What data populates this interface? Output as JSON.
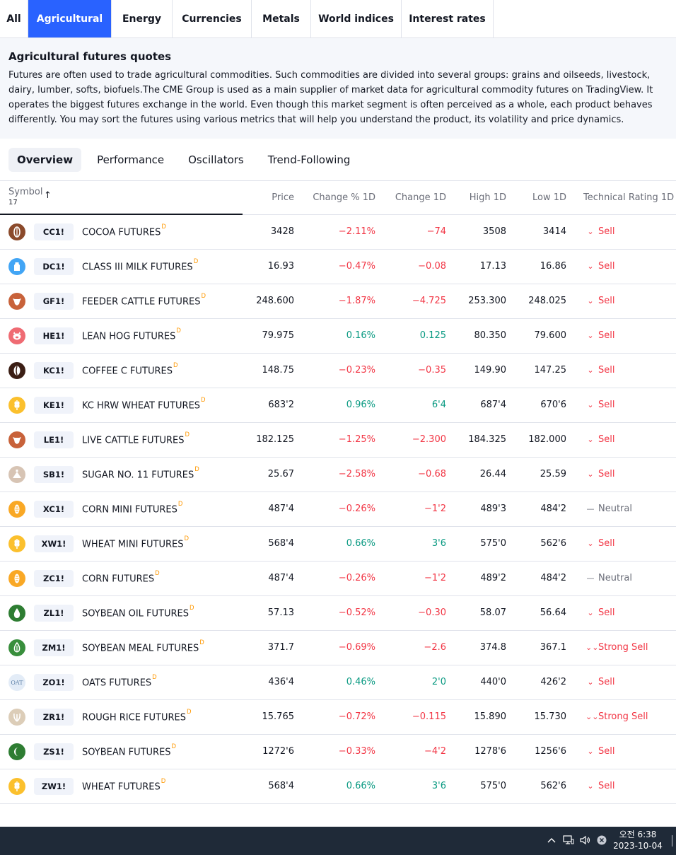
{
  "category_tabs": [
    {
      "label": "All",
      "active": false
    },
    {
      "label": "Agricultural",
      "active": true
    },
    {
      "label": "Energy",
      "active": false
    },
    {
      "label": "Currencies",
      "active": false
    },
    {
      "label": "Metals",
      "active": false
    },
    {
      "label": "World indices",
      "active": false
    },
    {
      "label": "Interest rates",
      "active": false
    }
  ],
  "info": {
    "title": "Agricultural futures quotes",
    "description": "Futures are often used to trade agricultural commodities. Such commodities are divided into several groups: grains and oilseeds, livestock, dairy, lumber, softs, biofuels.The CME Group is used as a main supplier of market data for agricultural commodity futures on TradingView. It operates the biggest futures exchange in the world. Even though this market segment is often perceived as a whole, each product behaves differently. You may sort the futures using various metrics that will help you understand the product, its volatility and price dynamics."
  },
  "view_tabs": [
    {
      "label": "Overview",
      "active": true
    },
    {
      "label": "Performance",
      "active": false
    },
    {
      "label": "Oscillators",
      "active": false
    },
    {
      "label": "Trend-Following",
      "active": false
    }
  ],
  "table": {
    "headers": {
      "symbol": "Symbol",
      "count": "17",
      "price": "Price",
      "change_pct": "Change % 1D",
      "change": "Change 1D",
      "high": "High 1D",
      "low": "Low 1D",
      "rating": "Technical Rating 1D"
    },
    "delayed_mark": "D",
    "rows": [
      {
        "ticker": "CC1!",
        "name": "COCOA FUTURES",
        "price": "3428",
        "change_pct": "−2.11%",
        "change": "−74",
        "high": "3508",
        "low": "3414",
        "rating": "Sell",
        "direction": "neg",
        "icon": "cocoa-icon",
        "icon_color": "#8b4a2b"
      },
      {
        "ticker": "DC1!",
        "name": "CLASS III MILK FUTURES",
        "price": "16.93",
        "change_pct": "−0.47%",
        "change": "−0.08",
        "high": "17.13",
        "low": "16.86",
        "rating": "Sell",
        "direction": "neg",
        "icon": "milk-icon",
        "icon_color": "#42a5f5"
      },
      {
        "ticker": "GF1!",
        "name": "FEEDER CATTLE FUTURES",
        "price": "248.600",
        "change_pct": "−1.87%",
        "change": "−4.725",
        "high": "253.300",
        "low": "248.025",
        "rating": "Sell",
        "direction": "neg",
        "icon": "cattle-icon",
        "icon_color": "#c8623a"
      },
      {
        "ticker": "HE1!",
        "name": "LEAN HOG FUTURES",
        "price": "79.975",
        "change_pct": "0.16%",
        "change": "0.125",
        "high": "80.350",
        "low": "79.600",
        "rating": "Sell",
        "direction": "pos",
        "icon": "hog-icon",
        "icon_color": "#ef6b73"
      },
      {
        "ticker": "KC1!",
        "name": "COFFEE C FUTURES",
        "price": "148.75",
        "change_pct": "−0.23%",
        "change": "−0.35",
        "high": "149.90",
        "low": "147.25",
        "rating": "Sell",
        "direction": "neg",
        "icon": "coffee-icon",
        "icon_color": "#3b1e14"
      },
      {
        "ticker": "KE1!",
        "name": "KC HRW WHEAT FUTURES",
        "price": "683'2",
        "change_pct": "0.96%",
        "change": "6'4",
        "high": "687'4",
        "low": "670'6",
        "rating": "Sell",
        "direction": "pos",
        "icon": "wheat-icon",
        "icon_color": "#fbc02d"
      },
      {
        "ticker": "LE1!",
        "name": "LIVE CATTLE FUTURES",
        "price": "182.125",
        "change_pct": "−1.25%",
        "change": "−2.300",
        "high": "184.325",
        "low": "182.000",
        "rating": "Sell",
        "direction": "neg",
        "icon": "cattle-icon",
        "icon_color": "#c8623a"
      },
      {
        "ticker": "SB1!",
        "name": "SUGAR NO. 11 FUTURES",
        "price": "25.67",
        "change_pct": "−2.58%",
        "change": "−0.68",
        "high": "26.44",
        "low": "25.59",
        "rating": "Sell",
        "direction": "neg",
        "icon": "sugar-icon",
        "icon_color": "#d7c4b4"
      },
      {
        "ticker": "XC1!",
        "name": "CORN MINI FUTURES",
        "price": "487'4",
        "change_pct": "−0.26%",
        "change": "−1'2",
        "high": "489'3",
        "low": "484'2",
        "rating": "Neutral",
        "direction": "neg",
        "icon": "corn-icon",
        "icon_color": "#f9a825"
      },
      {
        "ticker": "XW1!",
        "name": "WHEAT MINI FUTURES",
        "price": "568'4",
        "change_pct": "0.66%",
        "change": "3'6",
        "high": "575'0",
        "low": "562'6",
        "rating": "Sell",
        "direction": "pos",
        "icon": "wheat-icon",
        "icon_color": "#fbc02d"
      },
      {
        "ticker": "ZC1!",
        "name": "CORN FUTURES",
        "price": "487'4",
        "change_pct": "−0.26%",
        "change": "−1'2",
        "high": "489'2",
        "low": "484'2",
        "rating": "Neutral",
        "direction": "neg",
        "icon": "corn-icon",
        "icon_color": "#f9a825"
      },
      {
        "ticker": "ZL1!",
        "name": "SOYBEAN OIL FUTURES",
        "price": "57.13",
        "change_pct": "−0.52%",
        "change": "−0.30",
        "high": "58.07",
        "low": "56.64",
        "rating": "Sell",
        "direction": "neg",
        "icon": "oil-drop-icon",
        "icon_color": "#2e7d32"
      },
      {
        "ticker": "ZM1!",
        "name": "SOYBEAN MEAL FUTURES",
        "price": "371.7",
        "change_pct": "−0.69%",
        "change": "−2.6",
        "high": "374.8",
        "low": "367.1",
        "rating": "Strong Sell",
        "direction": "neg",
        "icon": "soy-meal-icon",
        "icon_color": "#388e3c"
      },
      {
        "ticker": "ZO1!",
        "name": "OATS FUTURES",
        "price": "436'4",
        "change_pct": "0.46%",
        "change": "2'0",
        "high": "440'0",
        "low": "426'2",
        "rating": "Sell",
        "direction": "pos",
        "icon": "oats-icon",
        "icon_color": "#e3ecf7",
        "icon_text": "OAT"
      },
      {
        "ticker": "ZR1!",
        "name": "ROUGH RICE FUTURES",
        "price": "15.765",
        "change_pct": "−0.72%",
        "change": "−0.115",
        "high": "15.890",
        "low": "15.730",
        "rating": "Strong Sell",
        "direction": "neg",
        "icon": "rice-icon",
        "icon_color": "#dccdb8"
      },
      {
        "ticker": "ZS1!",
        "name": "SOYBEAN FUTURES",
        "price": "1272'6",
        "change_pct": "−0.33%",
        "change": "−4'2",
        "high": "1278'6",
        "low": "1256'6",
        "rating": "Sell",
        "direction": "neg",
        "icon": "soybean-icon",
        "icon_color": "#2e7d32"
      },
      {
        "ticker": "ZW1!",
        "name": "WHEAT FUTURES",
        "price": "568'4",
        "change_pct": "0.66%",
        "change": "3'6",
        "high": "575'0",
        "low": "562'6",
        "rating": "Sell",
        "direction": "pos",
        "icon": "wheat-icon",
        "icon_color": "#fbc02d"
      }
    ]
  },
  "colors": {
    "accent": "#2962ff",
    "negative": "#f23645",
    "positive": "#089981",
    "neutral": "#6a6d78",
    "delayed": "#ff9800",
    "taskbar": "#1f2a38"
  },
  "taskbar": {
    "time": "오전 6:38",
    "date": "2023-10-04",
    "tray_icons": [
      "chevron-up-icon",
      "network-icon",
      "speaker-icon",
      "close-circle-icon"
    ]
  }
}
